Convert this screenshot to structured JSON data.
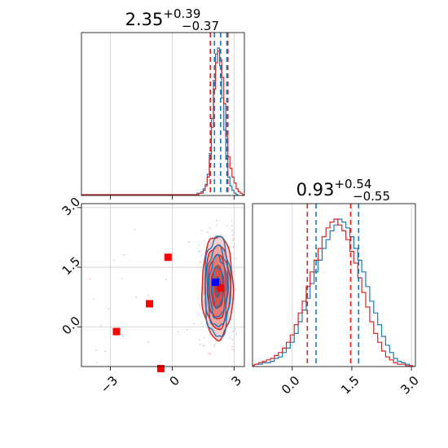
{
  "chart_data": {
    "type": "corner",
    "colors": {
      "red": "#d62728",
      "blue": "#1f77b4",
      "marker_red": "#ff0000",
      "marker_blue": "#0000ff",
      "grid": "#cccccc",
      "fill_light": "#f1a7a3"
    },
    "panels": [
      {
        "id": "param1-marginal",
        "type": "step-histogram",
        "title_main": "2.35",
        "title_plus": "+0.39",
        "title_minus": "−0.37",
        "xlim": [
          -4.4,
          3.5
        ],
        "grid": true,
        "quantile_lines": {
          "red": [
            1.85,
            2.7
          ],
          "blue": [
            2.05,
            2.35,
            2.65
          ]
        },
        "series": [
          {
            "name": "",
            "color": "#1f77b4",
            "x_start": 1.2,
            "bin_width": 0.1,
            "counts": [
              1,
              1,
              2,
              4,
              7,
              14,
              28,
              52,
              78,
              96,
              100,
              88,
              66,
              44,
              24,
              12,
              6,
              3,
              1,
              0
            ]
          },
          {
            "name": "",
            "color": "#d62728",
            "x_start": 1.2,
            "bin_width": 0.1,
            "counts": [
              0,
              1,
              1,
              3,
              6,
              12,
              24,
              46,
              72,
              90,
              98,
              92,
              80,
              62,
              40,
              26,
              18,
              12,
              8,
              4,
              2,
              1,
              0
            ]
          }
        ]
      },
      {
        "id": "param2-marginal",
        "type": "step-histogram",
        "title_main": "0.93",
        "title_plus": "+0.54",
        "title_minus": "−0.55",
        "xlim": [
          -1.0,
          3.1
        ],
        "xticks": [
          "0.0",
          "1.5",
          "3.0"
        ],
        "xtick_values": [
          0.0,
          1.5,
          3.0
        ],
        "grid": true,
        "quantile_lines": {
          "red": [
            0.38,
            1.47
          ],
          "blue": [
            0.6,
            1.67
          ]
        },
        "series": [
          {
            "name": "",
            "color": "#1f77b4",
            "x_start": -0.95,
            "bin_width": 0.1,
            "counts": [
              1,
              1,
              2,
              2,
              3,
              5,
              6,
              9,
              12,
              16,
              22,
              30,
              38,
              46,
              56,
              64,
              72,
              80,
              86,
              92,
              96,
              100,
              98,
              94,
              88,
              80,
              72,
              64,
              54,
              44,
              36,
              28,
              20,
              14,
              9,
              5,
              3,
              2,
              1,
              0
            ]
          },
          {
            "name": "",
            "color": "#d62728",
            "x_start": -0.95,
            "bin_width": 0.1,
            "counts": [
              1,
              2,
              3,
              4,
              5,
              7,
              9,
              12,
              16,
              21,
              28,
              36,
              44,
              54,
              64,
              72,
              80,
              88,
              94,
              98,
              100,
              96,
              92,
              86,
              78,
              70,
              60,
              50,
              40,
              30,
              22,
              16,
              10,
              6,
              4,
              2,
              1,
              1,
              0,
              0
            ]
          }
        ]
      },
      {
        "id": "joint",
        "type": "contour-scatter",
        "xlim": [
          -4.4,
          3.5
        ],
        "ylim": [
          -1.0,
          3.1
        ],
        "xticks": [
          "−3",
          "0",
          "3"
        ],
        "xtick_values": [
          -3,
          0,
          3
        ],
        "yticks": [
          "0.0",
          "1.5",
          "3.0"
        ],
        "ytick_values": [
          0.0,
          1.5,
          3.0
        ],
        "grid": true,
        "contours": {
          "center": [
            2.2,
            1.0
          ],
          "red_sigma": [
            0.36,
            0.62
          ],
          "blue_sigma": [
            0.3,
            0.6
          ],
          "levels": [
            0.4,
            0.85,
            1.3,
            1.7,
            2.1
          ]
        },
        "red_markers": [
          {
            "x": -0.2,
            "y": 1.75
          },
          {
            "x": -1.1,
            "y": 0.58
          },
          {
            "x": -2.7,
            "y": -0.12
          },
          {
            "x": -0.55,
            "y": -1.05
          },
          {
            "x": 2.35,
            "y": 0.98
          }
        ],
        "blue_markers": [
          {
            "x": 2.1,
            "y": 1.12
          }
        ]
      }
    ]
  }
}
